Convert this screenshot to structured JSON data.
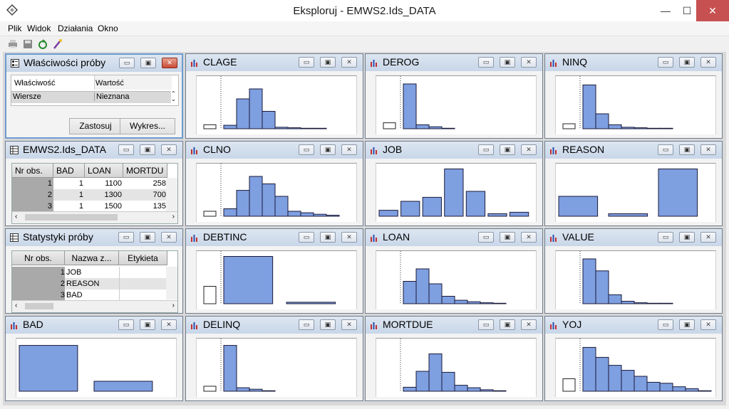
{
  "window": {
    "title": "Eksploruj - EMWS2.Ids_DATA",
    "min": "—",
    "max": "☐",
    "close": "✕"
  },
  "menu": [
    "Plik",
    "Widok",
    "Działania",
    "Okno"
  ],
  "toolbar": [
    "print-icon",
    "save-icon",
    "refresh-icon",
    "magic-wand-icon"
  ],
  "panel_buttons": {
    "min": "▭",
    "restore": "▣",
    "close": "✕"
  },
  "properties_panel": {
    "title": "Właściwości próby",
    "col_property": "Właściwość",
    "col_value": "Wartość",
    "row_label": "Wiersze",
    "row_value": "Nieznana",
    "apply": "Zastosuj",
    "chart": "Wykres..."
  },
  "data_panel": {
    "title": "EMWS2.Ids_DATA",
    "columns": [
      "Nr obs.",
      "BAD",
      "LOAN",
      "MORTDU"
    ],
    "rows": [
      [
        "1",
        "1",
        "1100",
        "258"
      ],
      [
        "2",
        "1",
        "1300",
        "700"
      ],
      [
        "3",
        "1",
        "1500",
        "135"
      ]
    ]
  },
  "stats_panel": {
    "title": "Statystyki próby",
    "columns": [
      "Nr obs.",
      "Nazwa z...",
      "Etykieta"
    ],
    "rows": [
      [
        "1",
        "JOB",
        ""
      ],
      [
        "2",
        "REASON",
        ""
      ],
      [
        "3",
        "BAD",
        ""
      ]
    ]
  },
  "chart_data": [
    {
      "type": "bar",
      "title": "CLAGE",
      "values": [
        7,
        60,
        80,
        35,
        3,
        2,
        1,
        1
      ],
      "missing": 8
    },
    {
      "type": "bar",
      "title": "DEROG",
      "values": [
        90,
        8,
        4,
        1
      ],
      "missing": 12
    },
    {
      "type": "bar",
      "title": "NINQ",
      "values": [
        88,
        30,
        8,
        3,
        2,
        1,
        1
      ],
      "missing": 10
    },
    {
      "type": "bar",
      "title": "CLNO",
      "values": [
        15,
        52,
        80,
        65,
        40,
        10,
        7,
        4,
        2
      ],
      "missing": 10
    },
    {
      "type": "bar",
      "title": "JOB",
      "values": [
        12,
        30,
        38,
        95,
        50,
        5,
        8
      ]
    },
    {
      "type": "bar",
      "title": "REASON",
      "values": [
        40,
        5,
        95
      ]
    },
    {
      "type": "bar",
      "title": "DEBTINC",
      "values": [
        95,
        3
      ],
      "missing": 35
    },
    {
      "type": "bar",
      "title": "LOAN",
      "values": [
        45,
        70,
        40,
        15,
        7,
        4,
        2,
        1
      ],
      "missing": 0
    },
    {
      "type": "bar",
      "title": "VALUE",
      "values": [
        90,
        66,
        18,
        5,
        2,
        1,
        1
      ],
      "missing": 0
    },
    {
      "type": "bar",
      "title": "BAD",
      "values": [
        92,
        20
      ]
    },
    {
      "type": "bar",
      "title": "DELINQ",
      "values": [
        92,
        7,
        4,
        1
      ],
      "missing": 10
    },
    {
      "type": "bar",
      "title": "MORTDUE",
      "values": [
        8,
        40,
        75,
        38,
        12,
        7,
        3,
        1
      ],
      "missing": 0
    },
    {
      "type": "bar",
      "title": "YOJ",
      "values": [
        88,
        68,
        52,
        42,
        30,
        18,
        16,
        9,
        5,
        1
      ],
      "missing": 25
    }
  ]
}
